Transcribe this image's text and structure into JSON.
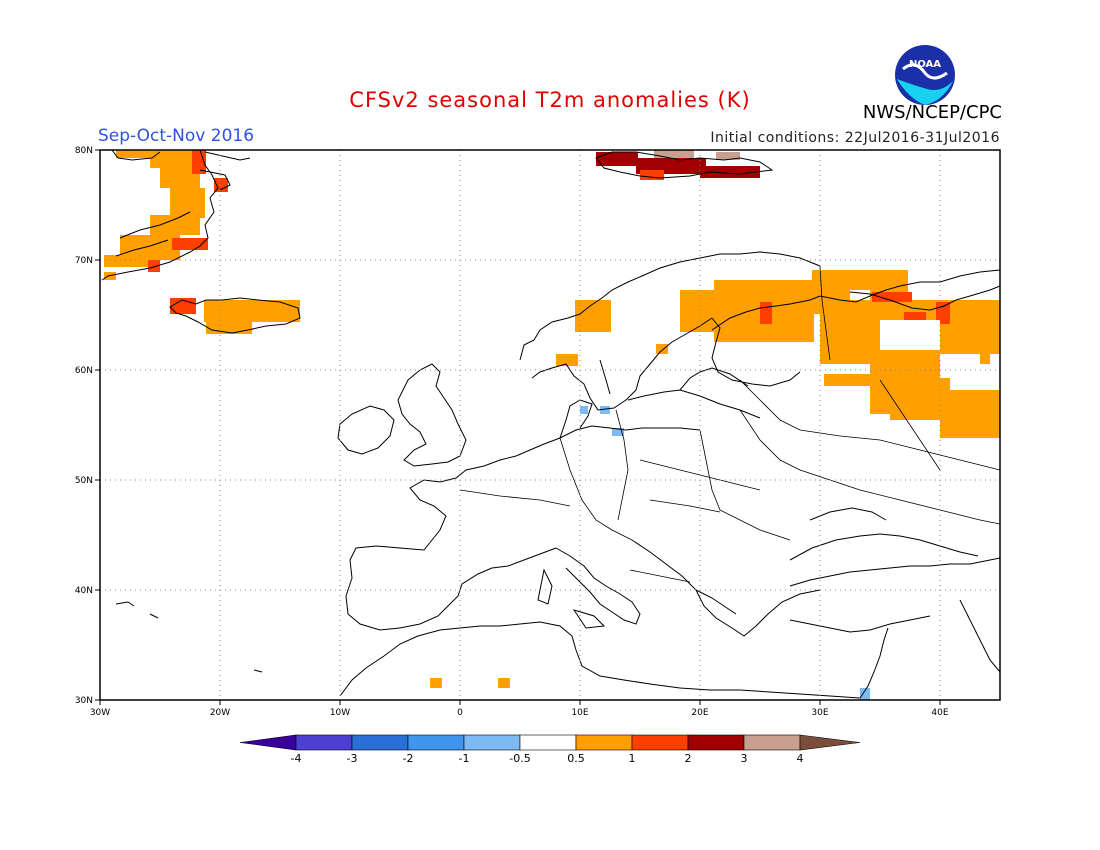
{
  "header": {
    "title": "CFSv2 seasonal T2m anomalies (K)",
    "season": "Sep-Oct-Nov 2016",
    "initial_conditions": "Initial conditions: 22Jul2016-31Jul2016",
    "agency": "NWS/NCEP/CPC",
    "logo_text": "NOAA"
  },
  "map": {
    "lon_range": [
      -30,
      45
    ],
    "lat_range": [
      30,
      80
    ],
    "lat_labels": [
      "80N",
      "70N",
      "60N",
      "50N",
      "40N",
      "30N"
    ],
    "lon_labels": [
      "30W",
      "20W",
      "10W",
      "0",
      "10E",
      "20E",
      "30E",
      "40E"
    ]
  },
  "colorbar": {
    "labels": [
      "-4",
      "-3",
      "-2",
      "-1",
      "-0.5",
      "0.5",
      "1",
      "2",
      "3",
      "4"
    ],
    "colors": [
      "#3a009c",
      "#4e3fd4",
      "#2a6fd6",
      "#4096ef",
      "#7dbaf4",
      "#ffffff",
      "#ffa000",
      "#ff3e00",
      "#a10000",
      "#c9a090",
      "#7a4e3a"
    ]
  },
  "anomaly_colors": {
    "orange": "#ffa000",
    "red": "#ff3e00",
    "dark_red": "#a10000",
    "light_blue": "#7dbaf4",
    "tan": "#c9a090"
  }
}
